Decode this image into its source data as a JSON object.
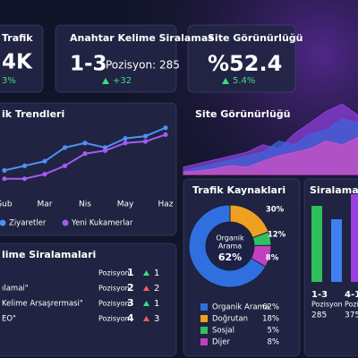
{
  "cards": [
    {
      "title": "Trafik",
      "value": "4K",
      "change": "3%"
    },
    {
      "title": "Anahtar Kelime Siralamas",
      "value": "1-3",
      "detail": "Pozisyon: 285",
      "change": "+32"
    },
    {
      "title": "Site Görünürlüğü",
      "value": "%52.4",
      "change": "5.4%"
    }
  ],
  "chart_data": [
    {
      "type": "line",
      "title": "ik Trendleri",
      "categories": [
        "Şub",
        null,
        "Mar",
        null,
        "Nis",
        null,
        "May",
        null,
        "Haz"
      ],
      "ylim": [
        0,
        100
      ],
      "series": [
        {
          "name": "Ziyaretler",
          "color": "#4f8ff7",
          "values": [
            29,
            35,
            41,
            59,
            65,
            59,
            71,
            74,
            85
          ]
        },
        {
          "name": "Yeni Kukamerlar",
          "color": "#a35cf0",
          "values": [
            18,
            18,
            24,
            35,
            51,
            55,
            65,
            67,
            76
          ]
        }
      ]
    },
    {
      "type": "area",
      "title": "Site Görünürlüğü",
      "ylim": [
        0,
        100
      ],
      "series": [
        {
          "color": "#8a3fd6",
          "values": [
            10,
            15,
            20,
            25,
            30,
            40,
            35,
            55,
            70,
            85,
            95,
            80
          ]
        },
        {
          "color": "#3f63d8",
          "values": [
            5,
            10,
            15,
            20,
            25,
            30,
            45,
            40,
            55,
            60,
            75,
            70
          ]
        },
        {
          "color": "#d24fc4",
          "values": [
            3,
            5,
            8,
            12,
            10,
            18,
            25,
            30,
            35,
            45,
            40,
            50
          ]
        }
      ]
    },
    {
      "type": "pie",
      "title": "Trafik Kaynaklari",
      "center_label": [
        "Organik",
        "Arama"
      ],
      "center_value": "62%",
      "categories": [
        "Organik Arama",
        "Doğrutan",
        "Sosjal",
        "Dijer"
      ],
      "values": [
        62,
        18,
        5,
        8
      ],
      "value_labels": [
        "62%",
        "18%",
        "5%",
        "8%"
      ],
      "colors": [
        "#2f6fe0",
        "#f0a020",
        "#30c060",
        "#c040c0"
      ],
      "annotations": [
        "30%",
        "12%",
        "8%"
      ]
    },
    {
      "type": "bar",
      "title": "Siralama Da",
      "categories": [
        "1-3",
        "4-1",
        null
      ],
      "values": [
        85,
        70,
        98
      ],
      "colors": [
        "#2fbf5a",
        "#3f7ff0",
        "#9a3fe0"
      ],
      "ylim": [
        0,
        100
      ],
      "notes": [
        {
          "label": "Pozisyon",
          "count": "285"
        },
        {
          "label": "Pozisyon",
          "count": "375"
        }
      ]
    }
  ],
  "rankings": {
    "title": "lime Siralamalari",
    "rows": [
      {
        "keyword": "",
        "label": "Pozisyon",
        "position": "1",
        "change": "1",
        "color": "#3ddc84"
      },
      {
        "keyword": "ılamai\"",
        "label": "Pozisyon",
        "position": "2",
        "change": "2",
        "color": "#ff5a5a"
      },
      {
        "keyword": "Kelime Arsaşrermasi\"",
        "label": "Pozisyon",
        "position": "3",
        "change": "1",
        "color": "#3ddc84"
      },
      {
        "keyword": "EO\"",
        "label": "Pozisyon",
        "position": "4",
        "change": "3",
        "color": "#ff5a5a"
      }
    ]
  }
}
